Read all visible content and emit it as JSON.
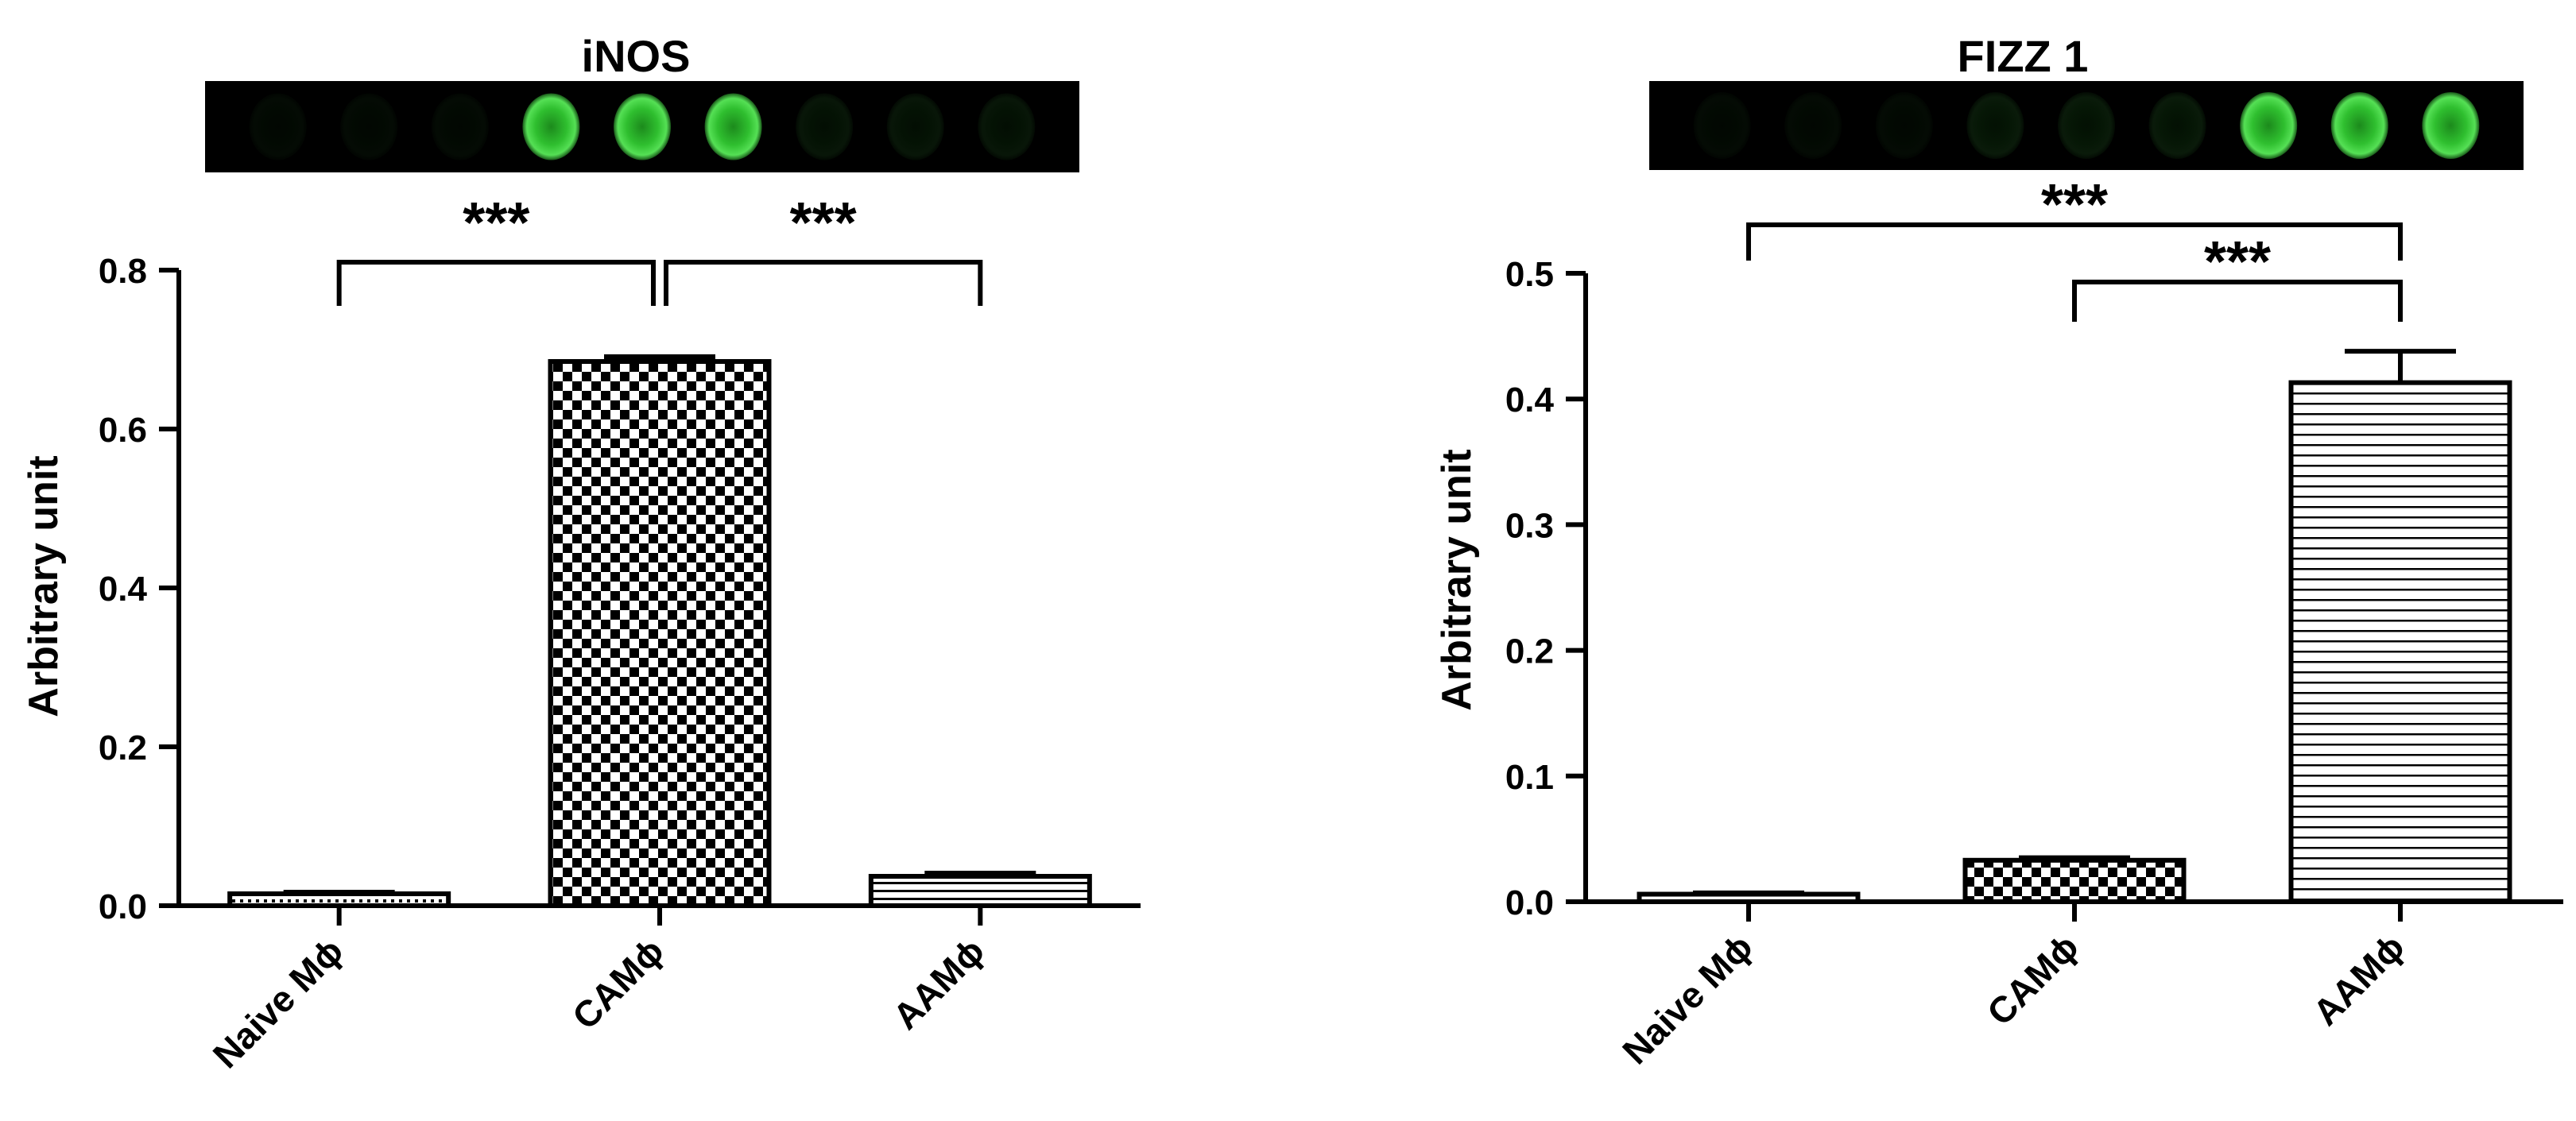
{
  "chart_data": [
    {
      "type": "bar",
      "title": "iNOS",
      "ylabel": "Arbitrary unit",
      "xlabel": "",
      "categories": [
        "Naive Mϕ",
        "CAMϕ",
        "AAMϕ"
      ],
      "values": [
        0.015,
        0.685,
        0.037
      ],
      "errors": [
        0.002,
        0.006,
        0.004
      ],
      "patterns": [
        "dots",
        "checker",
        "stripes"
      ],
      "ylim": [
        0,
        0.8
      ],
      "yticks": [
        "0.0",
        "0.2",
        "0.4",
        "0.6",
        "0.8"
      ],
      "grid": false,
      "significance": [
        {
          "from": 0,
          "to": 1,
          "label": "***"
        },
        {
          "from": 1,
          "to": 2,
          "label": "***"
        }
      ],
      "blot": {
        "spots": 9,
        "intensities": [
          0.05,
          0.05,
          0.05,
          1,
          1,
          1,
          0.1,
          0.1,
          0.1
        ],
        "color": "#3bd43b"
      }
    },
    {
      "type": "bar",
      "title": "FIZZ 1",
      "ylabel": "Arbitrary unit",
      "xlabel": "",
      "categories": [
        "Naive Mϕ",
        "CAMϕ",
        "AAMϕ"
      ],
      "values": [
        0.006,
        0.033,
        0.413
      ],
      "errors": [
        0.001,
        0.002,
        0.025
      ],
      "patterns": [
        "dots",
        "checker",
        "hstripes"
      ],
      "ylim": [
        0,
        0.5
      ],
      "yticks": [
        "0.0",
        "0.1",
        "0.2",
        "0.3",
        "0.4",
        "0.5"
      ],
      "grid": false,
      "significance": [
        {
          "from": 0,
          "to": 2,
          "label": "***"
        },
        {
          "from": 1,
          "to": 2,
          "label": "***"
        }
      ],
      "blot": {
        "spots": 9,
        "intensities": [
          0.05,
          0.05,
          0.05,
          0.12,
          0.12,
          0.12,
          1,
          1,
          1
        ],
        "color": "#3bd43b"
      }
    }
  ]
}
